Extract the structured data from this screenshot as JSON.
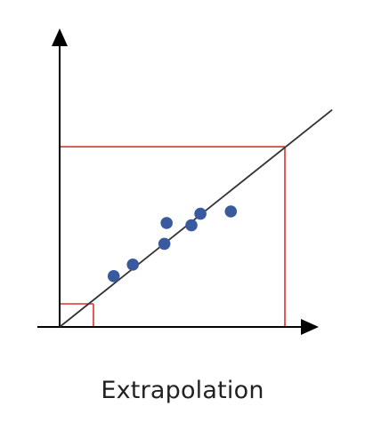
{
  "caption": "Extrapolation",
  "chart_data": {
    "type": "scatter",
    "title": "",
    "xlabel": "",
    "ylabel": "",
    "xlim": [
      0,
      10
    ],
    "ylim": [
      0,
      10
    ],
    "grid": false,
    "ticks": false,
    "series": [
      {
        "kind": "points",
        "color": "#3a5aa0",
        "x": [
          2.4,
          3.25,
          4.65,
          4.75,
          5.85,
          6.25,
          7.6
        ],
        "y": [
          2.2,
          2.7,
          3.6,
          4.5,
          4.4,
          4.9,
          5.0
        ]
      },
      {
        "kind": "trend-line",
        "color": "#333333",
        "x": [
          0,
          12.1
        ],
        "y": [
          0,
          9.4
        ]
      }
    ],
    "annotations": [
      {
        "kind": "projection-box",
        "color": "#e03030",
        "x": 1.5,
        "y": 1.0
      },
      {
        "kind": "projection-box",
        "color": "#e03030",
        "x": 10.0,
        "y": 7.8
      }
    ],
    "colors": {
      "points": "#3a5aa0",
      "trend": "#333333",
      "projection": "#e03030",
      "axis": "#000000"
    }
  }
}
